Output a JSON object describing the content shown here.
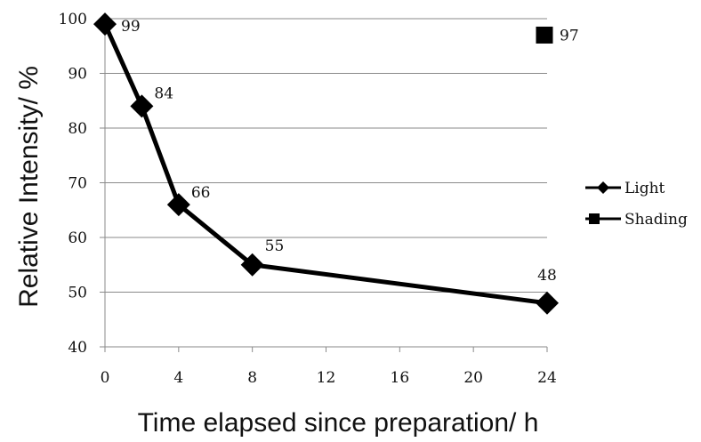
{
  "chart_data": {
    "type": "line",
    "title": "",
    "xlabel": "Time elapsed since preparation/ h",
    "ylabel": "Relative Intensity/ %",
    "xlim": [
      0,
      24
    ],
    "ylim": [
      40,
      100
    ],
    "x_ticks": [
      0,
      4,
      8,
      12,
      16,
      20,
      24
    ],
    "y_ticks": [
      40,
      50,
      60,
      70,
      80,
      90,
      100
    ],
    "x_tick_labels": [
      "0",
      "4",
      "8",
      "12",
      "16",
      "20",
      "24"
    ],
    "y_tick_labels": [
      "40",
      "50",
      "60",
      "70",
      "80",
      "90",
      "100"
    ],
    "grid": "horizontal",
    "legend_position": "right",
    "series": [
      {
        "name": "Light",
        "marker": "diamond",
        "line": true,
        "color": "#000000",
        "points": [
          {
            "x": 0,
            "y": 99,
            "label": "99"
          },
          {
            "x": 2,
            "y": 84,
            "label": "84"
          },
          {
            "x": 4,
            "y": 66,
            "label": "66"
          },
          {
            "x": 8,
            "y": 55,
            "label": "55"
          },
          {
            "x": 24,
            "y": 48,
            "label": "48"
          }
        ]
      },
      {
        "name": "Shading",
        "marker": "square",
        "line": false,
        "color": "#000000",
        "points": [
          {
            "x": 24,
            "y": 97,
            "label": "97"
          }
        ]
      }
    ]
  }
}
